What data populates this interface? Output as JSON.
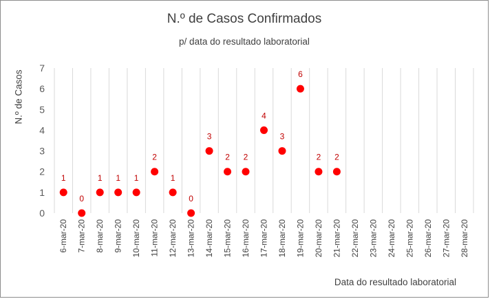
{
  "chart_data": {
    "type": "scatter",
    "title": "N.º de Casos Confirmados",
    "subtitle": "p/ data do resultado laboratorial",
    "xlabel": "Data do resultado laboratorial",
    "ylabel": "N.º de Casos",
    "ylim": [
      0,
      7
    ],
    "yticks": [
      "0",
      "1",
      "2",
      "3",
      "4",
      "5",
      "6",
      "7"
    ],
    "grid": "vertical",
    "categories": [
      "6-mar-20",
      "7-mar-20",
      "8-mar-20",
      "9-mar-20",
      "10-mar-20",
      "11-mar-20",
      "12-mar-20",
      "13-mar-20",
      "14-mar-20",
      "15-mar-20",
      "16-mar-20",
      "17-mar-20",
      "18-mar-20",
      "19-mar-20",
      "20-mar-20",
      "21-mar-20",
      "22-mar-20",
      "23-mar-20",
      "24-mar-20",
      "25-mar-20",
      "26-mar-20",
      "27-mar-20",
      "28-mar-20"
    ],
    "values": [
      1,
      0,
      1,
      1,
      1,
      2,
      1,
      0,
      3,
      2,
      2,
      4,
      3,
      6,
      2,
      2,
      null,
      null,
      null,
      null,
      null,
      null,
      null
    ],
    "color": "#ff0000",
    "label_color": "#c00000"
  }
}
